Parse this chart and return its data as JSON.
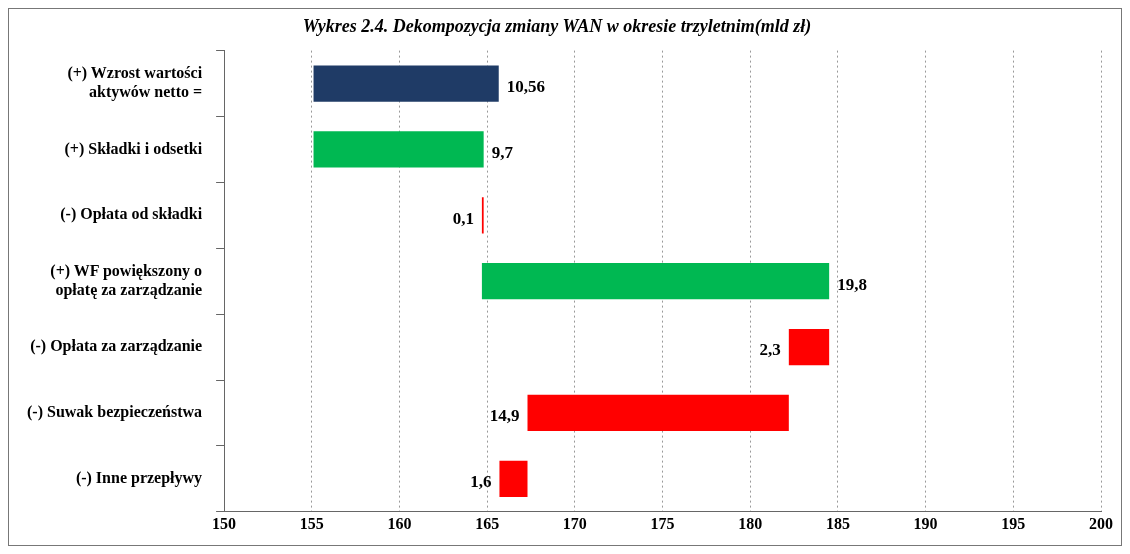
{
  "chart_data": {
    "type": "bar",
    "orientation": "horizontal",
    "title": "Wykres 2.4. Dekompozycja zmiany WAN w okresie trzyletnim(mld zł)",
    "categories": [
      "(+) Wzrost wartości aktywów netto =",
      "(+) Składki i odsetki",
      "(-) Opłata od składki",
      "(+) WF powiększony o opłatę za zarządzanie",
      "(-) Opłata za zarządzanie",
      "(-) Suwak bezpieczeństwa",
      "(-) Inne przepływy"
    ],
    "base": [
      155.1,
      155.1,
      164.8,
      164.7,
      184.5,
      182.2,
      167.3
    ],
    "values": [
      10.56,
      9.7,
      -0.1,
      19.8,
      -2.3,
      -14.9,
      -1.6
    ],
    "value_labels": [
      "10,56",
      "9,7",
      "0,1",
      "19,8",
      "2,3",
      "14,9",
      "1,6"
    ],
    "colors": [
      "#1f3b66",
      "#00b852",
      "#ff0000",
      "#00b852",
      "#ff0000",
      "#ff0000",
      "#ff0000"
    ],
    "xlim": [
      150,
      200
    ],
    "xticks": [
      150,
      155,
      160,
      165,
      170,
      175,
      180,
      185,
      190,
      195,
      200
    ],
    "grid": "x",
    "legend": false
  }
}
